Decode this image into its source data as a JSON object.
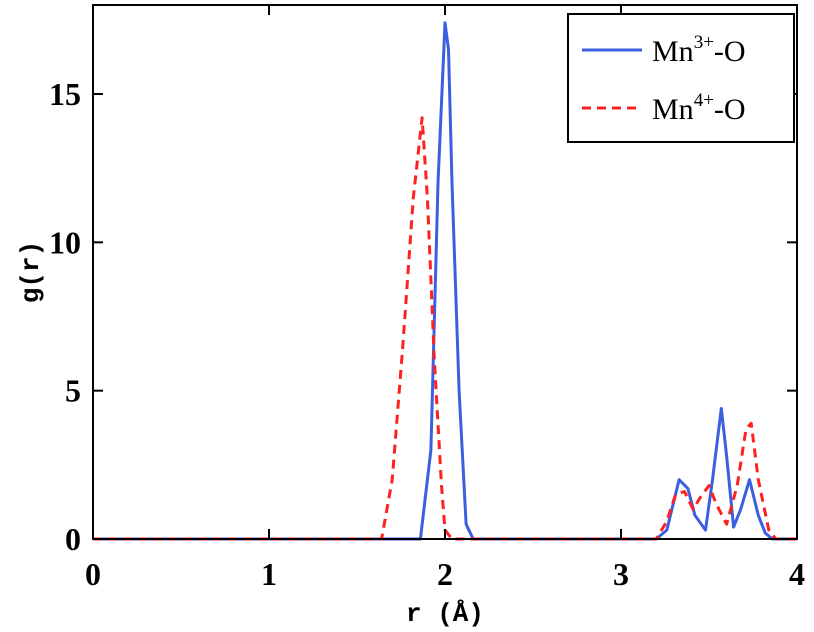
{
  "chart_data": {
    "type": "line",
    "xlabel": "r (Å)",
    "ylabel": "g(r)",
    "xlim": [
      0,
      4
    ],
    "ylim": [
      0,
      18
    ],
    "xticks": [
      "0",
      "1",
      "2",
      "3",
      "4"
    ],
    "yticks": [
      "0",
      "5",
      "10",
      "15"
    ],
    "legend_position": "top-right",
    "grid": false,
    "series": [
      {
        "name": "Mn3+-O",
        "name_base": "Mn",
        "name_sup": "3+",
        "name_suffix": "-O",
        "color": "#3b5fe0",
        "style": "solid",
        "x": [
          0,
          1.86,
          1.92,
          1.96,
          2.0,
          2.02,
          2.04,
          2.08,
          2.12,
          2.16,
          3.2,
          3.26,
          3.33,
          3.38,
          3.42,
          3.48,
          3.52,
          3.57,
          3.6,
          3.64,
          3.68,
          3.73,
          3.78,
          3.82,
          3.86,
          4.0
        ],
        "y": [
          0,
          0,
          3.0,
          12.0,
          17.4,
          16.5,
          12.0,
          5.0,
          0.5,
          0,
          0,
          0.3,
          2.0,
          1.7,
          0.8,
          0.3,
          2.0,
          4.4,
          2.8,
          0.4,
          1.0,
          2.0,
          0.8,
          0.2,
          0,
          0
        ]
      },
      {
        "name": "Mn4+-O",
        "name_base": "Mn",
        "name_sup": "4+",
        "name_suffix": "-O",
        "color": "#ff2020",
        "style": "dashed",
        "x": [
          0,
          1.64,
          1.7,
          1.76,
          1.82,
          1.87,
          1.9,
          1.94,
          1.98,
          2.0,
          2.04,
          3.2,
          3.26,
          3.31,
          3.36,
          3.41,
          3.45,
          3.5,
          3.54,
          3.6,
          3.66,
          3.71,
          3.74,
          3.78,
          3.84,
          3.88,
          4.0
        ],
        "y": [
          0,
          0,
          2.0,
          6.5,
          11.5,
          14.2,
          11.5,
          6.0,
          1.8,
          0.3,
          0,
          0,
          0.6,
          1.5,
          1.6,
          1.0,
          1.4,
          1.8,
          1.2,
          0.5,
          1.8,
          3.7,
          3.9,
          2.0,
          0.3,
          0,
          0
        ]
      }
    ]
  }
}
